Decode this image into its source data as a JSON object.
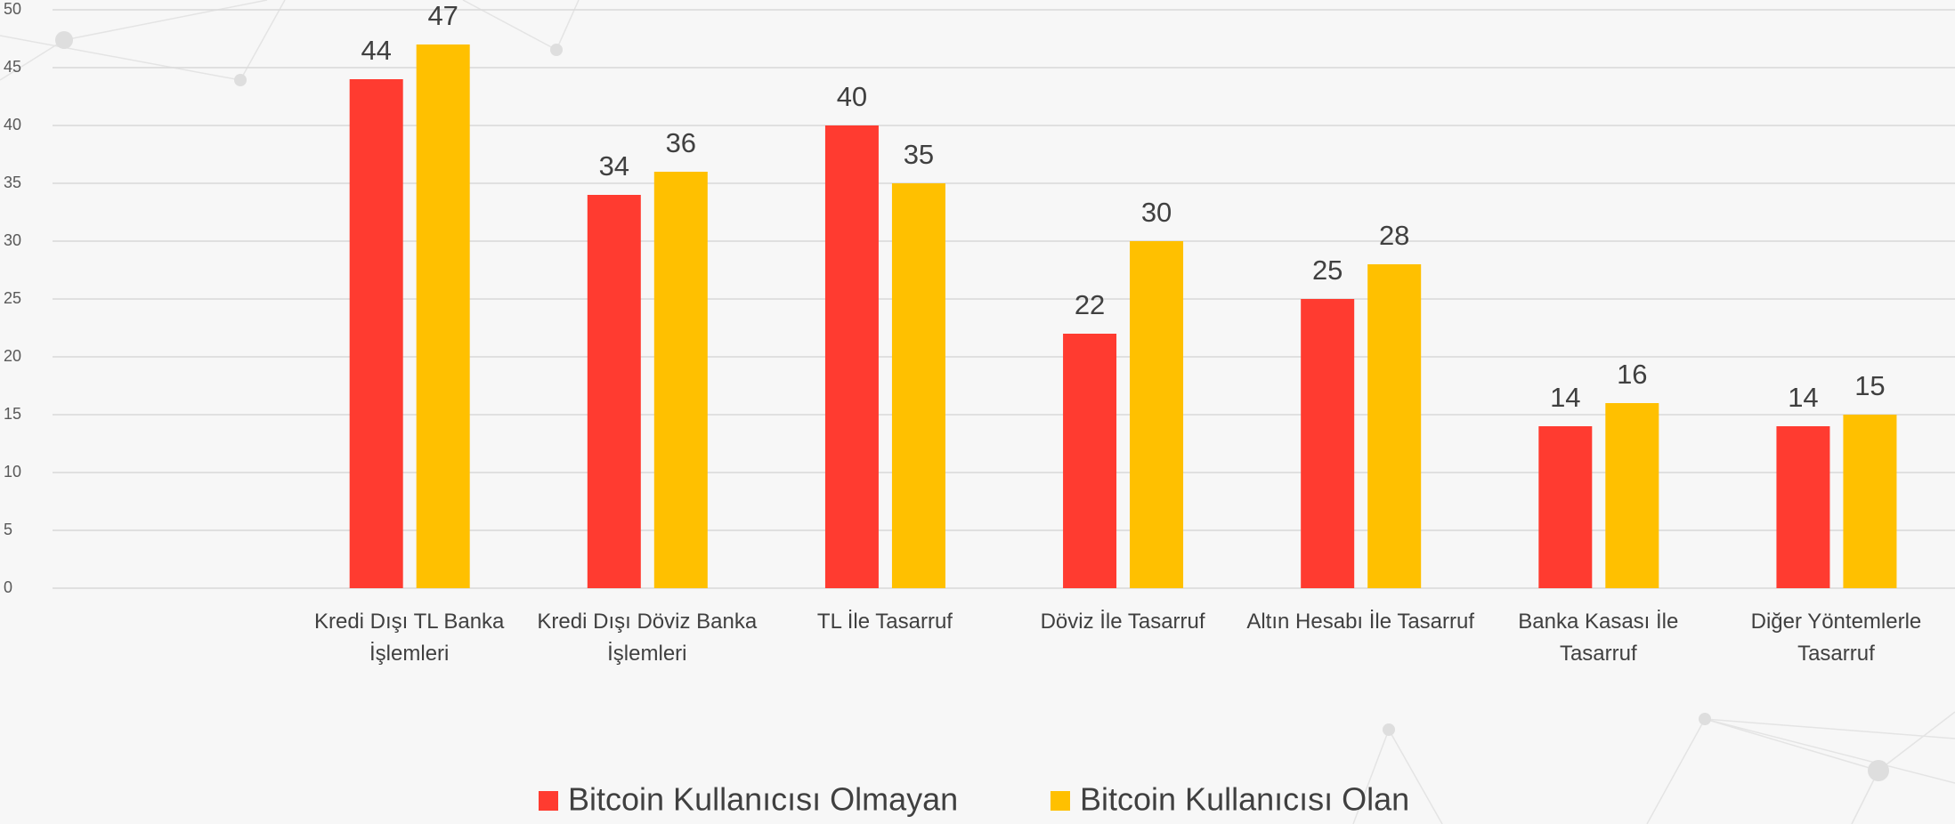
{
  "chart_data": {
    "type": "bar",
    "categories": [
      null,
      "Kredi Dışı TL Banka İşlemleri",
      "Kredi Dışı Döviz Banka İşlemleri",
      "TL İle Tasarruf",
      "Döviz İle Tasarruf",
      "Altın Hesabı İle Tasarruf",
      "Banka Kasası İle Tasarruf",
      "Diğer Yöntemlerle Tasarruf"
    ],
    "series": [
      {
        "name": "Bitcoin Kullanıcısı Olmayan",
        "color": "#ff3b30",
        "values": [
          null,
          44,
          34,
          40,
          22,
          25,
          14,
          14
        ]
      },
      {
        "name": "Bitcoin Kullanıcısı Olan",
        "color": "#ffc000",
        "values": [
          null,
          47,
          36,
          35,
          30,
          28,
          16,
          15
        ]
      }
    ],
    "ylim": [
      0,
      50
    ],
    "yticks": [
      0,
      5,
      10,
      15,
      20,
      25,
      30,
      35,
      40,
      45,
      50
    ],
    "grid": true,
    "legend": "bottom"
  }
}
